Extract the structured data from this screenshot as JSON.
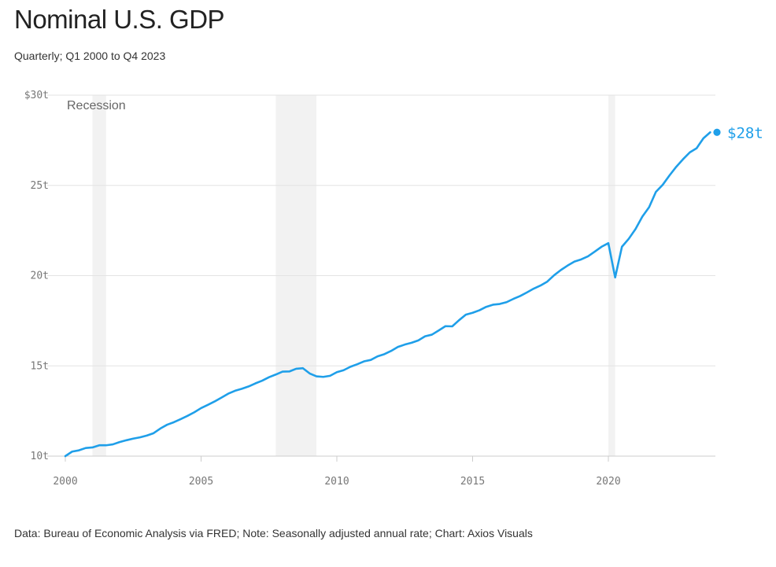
{
  "title": "Nominal U.S. GDP",
  "subtitle": "Quarterly; Q1 2000 to Q4 2023",
  "footer": "Data: Bureau of Economic Analysis via FRED; Note: Seasonally adjusted annual rate; Chart: Axios Visuals",
  "colors": {
    "line": "#1f9fe9",
    "recession": "#f2f2f2",
    "grid": "#e3e3e3",
    "axis": "#cccccc"
  },
  "chart_data": {
    "type": "line",
    "title": "Nominal U.S. GDP",
    "subtitle": "Quarterly; Q1 2000 to Q4 2023",
    "xlim": [
      2000,
      2024
    ],
    "ylim": [
      10,
      30
    ],
    "y_ticks": [
      10,
      15,
      20,
      25,
      30
    ],
    "y_tick_labels": [
      "10t",
      "15t",
      "20t",
      "25t",
      "$30t"
    ],
    "x_ticks": [
      2000,
      2005,
      2010,
      2015,
      2020
    ],
    "x_tick_labels": [
      "2000",
      "2005",
      "2010",
      "2015",
      "2020"
    ],
    "grid": true,
    "recession_label": "Recession",
    "recessions": [
      [
        2001.0,
        2001.5
      ],
      [
        2007.75,
        2009.25
      ],
      [
        2020.0,
        2020.25
      ]
    ],
    "end_label": "$28t",
    "x": [
      2000.0,
      2000.25,
      2000.5,
      2000.75,
      2001.0,
      2001.25,
      2001.5,
      2001.75,
      2002.0,
      2002.25,
      2002.5,
      2002.75,
      2003.0,
      2003.25,
      2003.5,
      2003.75,
      2004.0,
      2004.25,
      2004.5,
      2004.75,
      2005.0,
      2005.25,
      2005.5,
      2005.75,
      2006.0,
      2006.25,
      2006.5,
      2006.75,
      2007.0,
      2007.25,
      2007.5,
      2007.75,
      2008.0,
      2008.25,
      2008.5,
      2008.75,
      2009.0,
      2009.25,
      2009.5,
      2009.75,
      2010.0,
      2010.25,
      2010.5,
      2010.75,
      2011.0,
      2011.25,
      2011.5,
      2011.75,
      2012.0,
      2012.25,
      2012.5,
      2012.75,
      2013.0,
      2013.25,
      2013.5,
      2013.75,
      2014.0,
      2014.25,
      2014.5,
      2014.75,
      2015.0,
      2015.25,
      2015.5,
      2015.75,
      2016.0,
      2016.25,
      2016.5,
      2016.75,
      2017.0,
      2017.25,
      2017.5,
      2017.75,
      2018.0,
      2018.25,
      2018.5,
      2018.75,
      2019.0,
      2019.25,
      2019.5,
      2019.75,
      2020.0,
      2020.25,
      2020.5,
      2020.75,
      2021.0,
      2021.25,
      2021.5,
      2021.75,
      2022.0,
      2022.25,
      2022.5,
      2022.75,
      2023.0,
      2023.25,
      2023.5,
      2023.75
    ],
    "series": [
      {
        "values": [
          10.0,
          10.25,
          10.32,
          10.45,
          10.48,
          10.6,
          10.6,
          10.65,
          10.78,
          10.88,
          10.97,
          11.04,
          11.14,
          11.27,
          11.53,
          11.74,
          11.88,
          12.05,
          12.23,
          12.43,
          12.66,
          12.84,
          13.03,
          13.24,
          13.46,
          13.62,
          13.73,
          13.86,
          14.03,
          14.18,
          14.37,
          14.52,
          14.68,
          14.69,
          14.84,
          14.87,
          14.58,
          14.42,
          14.39,
          14.45,
          14.65,
          14.76,
          14.95,
          15.09,
          15.25,
          15.33,
          15.53,
          15.65,
          15.83,
          16.05,
          16.18,
          16.28,
          16.41,
          16.64,
          16.73,
          16.96,
          17.2,
          17.19,
          17.53,
          17.84,
          17.94,
          18.08,
          18.27,
          18.39,
          18.43,
          18.53,
          18.71,
          18.87,
          19.07,
          19.28,
          19.45,
          19.67,
          20.02,
          20.31,
          20.56,
          20.78,
          20.9,
          21.07,
          21.33,
          21.6,
          21.8,
          19.9,
          21.6,
          22.04,
          22.58,
          23.27,
          23.79,
          24.64,
          25.03,
          25.55,
          26.03,
          26.45,
          26.83,
          27.06,
          27.61,
          27.94
        ]
      }
    ]
  }
}
